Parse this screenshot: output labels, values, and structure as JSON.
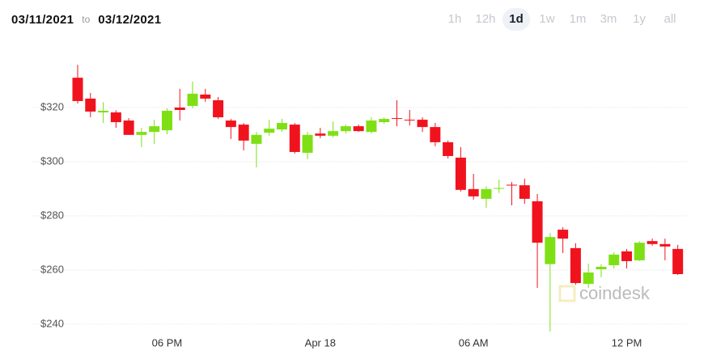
{
  "header": {
    "from": "03/11/2021",
    "to_label": "to",
    "to": "03/12/2021",
    "ranges": [
      "1h",
      "12h",
      "1d",
      "1w",
      "1m",
      "3m",
      "1y",
      "all"
    ],
    "selected_range": "1d"
  },
  "chart_data": {
    "type": "candlestick",
    "watermark": "coindesk",
    "categories": [
      null,
      null,
      null,
      null,
      null,
      null,
      null,
      "06 PM",
      null,
      null,
      null,
      null,
      null,
      null,
      null,
      null,
      null,
      null,
      null,
      "Apr 18",
      null,
      null,
      null,
      null,
      null,
      null,
      null,
      null,
      null,
      null,
      null,
      "06 AM",
      null,
      null,
      null,
      null,
      null,
      null,
      null,
      null,
      null,
      null,
      null,
      "12 PM",
      null,
      null,
      null,
      null
    ],
    "open": [
      331,
      323.3,
      318.2,
      318.2,
      315.2,
      309.9,
      311,
      311.6,
      320,
      320.6,
      324.8,
      322.7,
      315.2,
      313.7,
      306.6,
      310.7,
      311.9,
      313.7,
      303.3,
      310.4,
      309.6,
      311.3,
      313.1,
      311,
      314.6,
      316.1,
      315.5,
      315.5,
      312.8,
      307.2,
      301.5,
      289.9,
      286.3,
      290.1,
      291.5,
      291.3,
      285.4,
      262.2,
      274.9,
      268.1,
      254.9,
      260.3,
      261.8,
      266.9,
      263.6,
      270.7,
      269.6,
      267.8
    ],
    "high": [
      335.8,
      325.4,
      322,
      319,
      316.1,
      312.5,
      315.5,
      319.7,
      326.9,
      329.6,
      326.9,
      323.9,
      315.8,
      314.3,
      311,
      315.5,
      315.8,
      314.3,
      311,
      312.5,
      314.9,
      313.7,
      313.7,
      316.4,
      316.4,
      322.7,
      319.1,
      316.4,
      314.3,
      307.8,
      305.4,
      295.5,
      291,
      293.4,
      292.5,
      293.7,
      288.1,
      273.7,
      275.8,
      269.9,
      262.4,
      262.1,
      266.6,
      267.8,
      270.7,
      271.6,
      271.6,
      269.3
    ],
    "low": [
      321.5,
      316.4,
      314.3,
      312.5,
      309.9,
      305.4,
      306.6,
      310.1,
      315.2,
      319.7,
      322.1,
      315.8,
      308.4,
      304.2,
      297.9,
      309.6,
      311,
      303,
      300.9,
      308.7,
      309,
      310.4,
      311,
      310.4,
      314,
      313.1,
      313.4,
      311,
      305.7,
      301.2,
      289,
      286,
      283,
      288.4,
      283.9,
      284.5,
      253.4,
      237.3,
      266.3,
      254.6,
      253.4,
      257.3,
      260.6,
      260.6,
      263.3,
      269,
      263.6,
      258.2
    ],
    "close": [
      322.4,
      318.5,
      318.8,
      314.6,
      309.9,
      311,
      313.1,
      318.8,
      319.1,
      325.1,
      323.3,
      316.4,
      312.8,
      307.8,
      309.9,
      312.2,
      314.3,
      303.6,
      309.9,
      309.6,
      311.3,
      313.1,
      311.3,
      315.2,
      315.8,
      315.8,
      315.2,
      312.8,
      307.2,
      302.1,
      289.6,
      287.2,
      289.9,
      290.3,
      291.2,
      286.3,
      270.1,
      272.2,
      271.6,
      255.2,
      259.1,
      261.2,
      265.7,
      263.3,
      270.1,
      269.6,
      268.7,
      258.5
    ],
    "up_color": "#7ee014",
    "down_color": "#f0131e",
    "ylim": [
      236,
      341
    ],
    "yticks": [
      {
        "value": 240,
        "label": "$240"
      },
      {
        "value": 260,
        "label": "$260"
      },
      {
        "value": 280,
        "label": "$280"
      },
      {
        "value": 300,
        "label": "$300"
      },
      {
        "value": 320,
        "label": "$320"
      }
    ],
    "grid": true
  }
}
